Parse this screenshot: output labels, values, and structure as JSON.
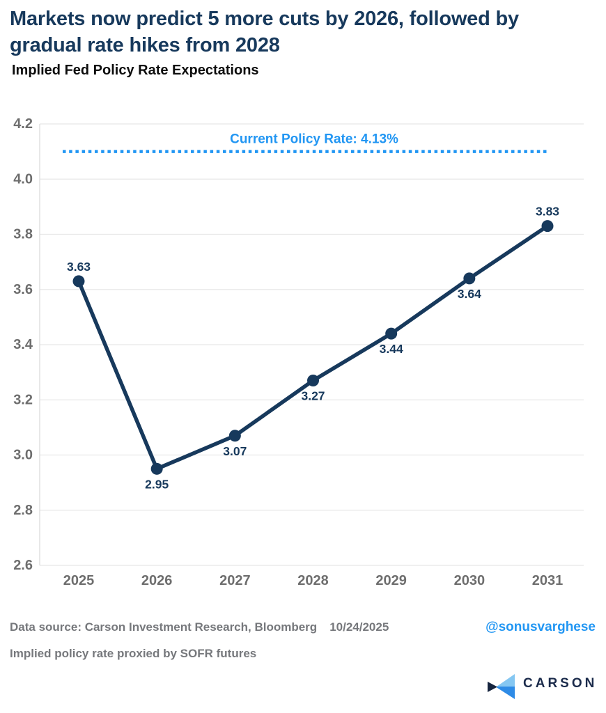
{
  "header": {
    "title": "Markets now predict 5 more cuts by 2026, followed by gradual rate hikes from 2028",
    "subtitle": "Implied Fed Policy Rate Expectations"
  },
  "chart_data": {
    "type": "line",
    "x": [
      2025,
      2026,
      2027,
      2028,
      2029,
      2030,
      2031
    ],
    "series": [
      {
        "name": "Implied Fed Policy Rate",
        "values": [
          3.63,
          2.95,
          3.07,
          3.27,
          3.44,
          3.64,
          3.83
        ]
      }
    ],
    "point_label_positions": [
      "above",
      "below",
      "below",
      "below",
      "below",
      "below",
      "above"
    ],
    "refline": {
      "label": "Current Policy Rate: 4.13%",
      "value": 4.1
    },
    "ylim": [
      2.6,
      4.2
    ],
    "ytick_step": 0.2,
    "yticks": [
      "4.2",
      "4.0",
      "3.8",
      "3.6",
      "3.4",
      "3.2",
      "3.0",
      "2.8",
      "2.6"
    ],
    "grid": true,
    "legend": "none",
    "xlabel": "",
    "ylabel": ""
  },
  "colors": {
    "navy": "#17395C",
    "blue": "#2196F3",
    "tick_gray": "#6e6e6e",
    "grid_gray": "#e8e8e8",
    "axis_gray": "#d9d9d9",
    "footer_gray": "#76787c",
    "logo_navy": "#1B2B4B",
    "logo_light_blue": "#85C7F2",
    "logo_mid_blue": "#2E8BE6",
    "logo_dark": "#16253F"
  },
  "footer": {
    "source": "Data source: Carson Investment Research, Bloomberg",
    "date": "10/24/2025",
    "handle": "@sonusvarghese",
    "note": "Implied policy rate proxied by SOFR futures"
  },
  "logo": {
    "text": "CARSON"
  }
}
